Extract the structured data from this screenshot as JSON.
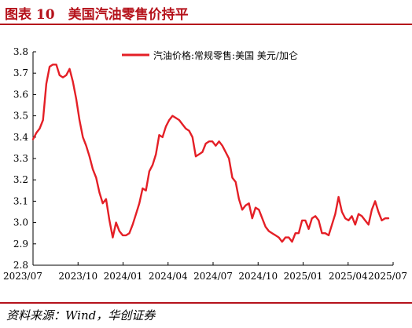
{
  "figure": {
    "title": "图表 10　美国汽油零售价持平",
    "source": "资料来源：Wind，华创证券"
  },
  "colors": {
    "accent": "#b5121b",
    "series": "#e41f26",
    "axis": "#000000"
  },
  "chart_data": {
    "type": "line",
    "title": "",
    "xlabel": "",
    "ylabel": "",
    "ylim": [
      2.8,
      3.8
    ],
    "yticks": [
      "3.8",
      "3.7",
      "3.6",
      "3.5",
      "3.4",
      "3.3",
      "3.2",
      "3.1",
      "3.0",
      "2.9",
      "2.8"
    ],
    "xticks": [
      "2023/07",
      "2023/10",
      "2024/01",
      "2024/04",
      "2024/07",
      "2024/10",
      "2025/01",
      "2025/04",
      "2025/07"
    ],
    "grid": false,
    "legend_position": "top-center",
    "series": [
      {
        "name": "汽油价格:常规零售:美国 美元/加仑",
        "values": [
          3.39,
          3.42,
          3.44,
          3.48,
          3.65,
          3.73,
          3.74,
          3.74,
          3.69,
          3.68,
          3.69,
          3.72,
          3.66,
          3.58,
          3.48,
          3.4,
          3.36,
          3.31,
          3.25,
          3.21,
          3.14,
          3.09,
          3.11,
          3.01,
          2.93,
          3.0,
          2.96,
          2.94,
          2.94,
          2.95,
          2.99,
          3.04,
          3.09,
          3.16,
          3.15,
          3.24,
          3.27,
          3.32,
          3.41,
          3.4,
          3.45,
          3.48,
          3.5,
          3.49,
          3.48,
          3.46,
          3.44,
          3.43,
          3.4,
          3.31,
          3.32,
          3.33,
          3.37,
          3.38,
          3.38,
          3.36,
          3.38,
          3.36,
          3.33,
          3.3,
          3.21,
          3.19,
          3.11,
          3.06,
          3.08,
          3.09,
          3.02,
          3.07,
          3.06,
          3.02,
          2.98,
          2.96,
          2.95,
          2.94,
          2.93,
          2.91,
          2.93,
          2.93,
          2.91,
          2.95,
          2.95,
          3.01,
          3.01,
          2.97,
          3.02,
          3.03,
          3.01,
          2.95,
          2.95,
          2.94,
          2.99,
          3.04,
          3.12,
          3.05,
          3.02,
          3.01,
          3.03,
          2.99,
          3.04,
          3.03,
          3.01,
          2.99,
          3.06,
          3.1,
          3.05,
          3.01,
          3.02,
          3.02
        ]
      }
    ]
  }
}
